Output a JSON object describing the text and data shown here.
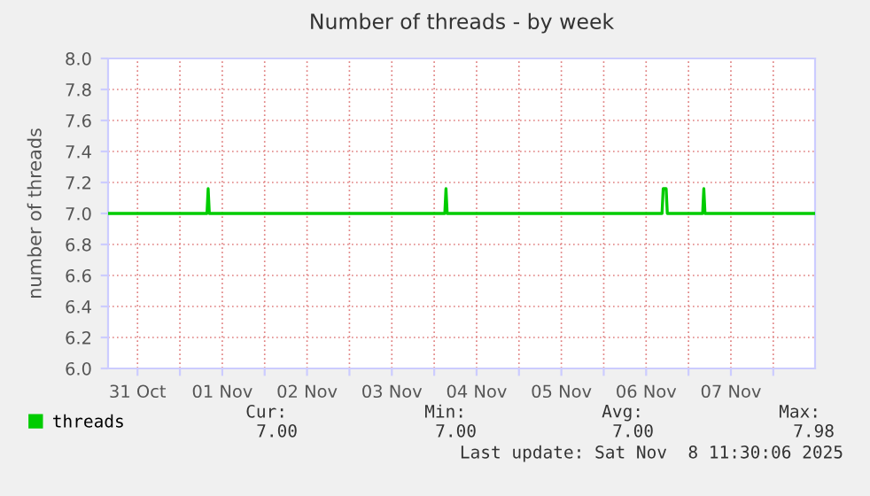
{
  "chart_data": {
    "type": "line",
    "title": "Number of threads - by week",
    "ylabel": "number of threads",
    "x": [
      "2025-10-31T03:40",
      "2025-11-01T07:40",
      "2025-11-01T08:00",
      "2025-11-01T08:20",
      "2025-11-04T03:00",
      "2025-11-04T03:20",
      "2025-11-04T03:40",
      "2025-11-06T16:30",
      "2025-11-06T16:50",
      "2025-11-06T17:40",
      "2025-11-06T18:00",
      "2025-11-07T04:00",
      "2025-11-07T04:20",
      "2025-11-07T04:40",
      "2025-11-08T11:30"
    ],
    "series": [
      {
        "name": "threads",
        "color": "#00cc00",
        "values": [
          7.0,
          7.0,
          7.16,
          7.0,
          7.0,
          7.16,
          7.0,
          7.0,
          7.16,
          7.16,
          7.0,
          7.0,
          7.16,
          7.0,
          7.0
        ]
      }
    ],
    "xlim": [
      "2025-10-31T03:40",
      "2025-11-08T11:50"
    ],
    "xticks": [
      {
        "value": "2025-10-31T12:00",
        "label": "31 Oct"
      },
      {
        "value": "2025-11-01T00:00",
        "label": null
      },
      {
        "value": "2025-11-01T12:00",
        "label": "01 Nov"
      },
      {
        "value": "2025-11-02T00:00",
        "label": null
      },
      {
        "value": "2025-11-02T12:00",
        "label": "02 Nov"
      },
      {
        "value": "2025-11-03T00:00",
        "label": null
      },
      {
        "value": "2025-11-03T12:00",
        "label": "03 Nov"
      },
      {
        "value": "2025-11-04T00:00",
        "label": null
      },
      {
        "value": "2025-11-04T12:00",
        "label": "04 Nov"
      },
      {
        "value": "2025-11-05T00:00",
        "label": null
      },
      {
        "value": "2025-11-05T12:00",
        "label": "05 Nov"
      },
      {
        "value": "2025-11-06T00:00",
        "label": null
      },
      {
        "value": "2025-11-06T12:00",
        "label": "06 Nov"
      },
      {
        "value": "2025-11-07T00:00",
        "label": null
      },
      {
        "value": "2025-11-07T12:00",
        "label": "07 Nov"
      },
      {
        "value": "2025-11-08T00:00",
        "label": null
      }
    ],
    "ylim": [
      6.0,
      8.0
    ],
    "yticks": [
      {
        "value": 6.0,
        "label": "6.0"
      },
      {
        "value": 6.2,
        "label": "6.2"
      },
      {
        "value": 6.4,
        "label": "6.4"
      },
      {
        "value": 6.6,
        "label": "6.6"
      },
      {
        "value": 6.8,
        "label": "6.8"
      },
      {
        "value": 7.0,
        "label": "7.0"
      },
      {
        "value": 7.2,
        "label": "7.2"
      },
      {
        "value": 7.4,
        "label": "7.4"
      },
      {
        "value": 7.6,
        "label": "7.6"
      },
      {
        "value": 7.8,
        "label": "7.8"
      },
      {
        "value": 8.0,
        "label": "8.0"
      }
    ],
    "grid": true,
    "legend": "bottom",
    "marker": "none",
    "line_style": "solid",
    "annotations": [
      "Cur:",
      "Min:",
      "Avg:",
      "Max:",
      "7.00",
      "7.00",
      "7.00",
      "7.98",
      "Last update: Sat Nov  8 11:30:06 2025"
    ]
  }
}
